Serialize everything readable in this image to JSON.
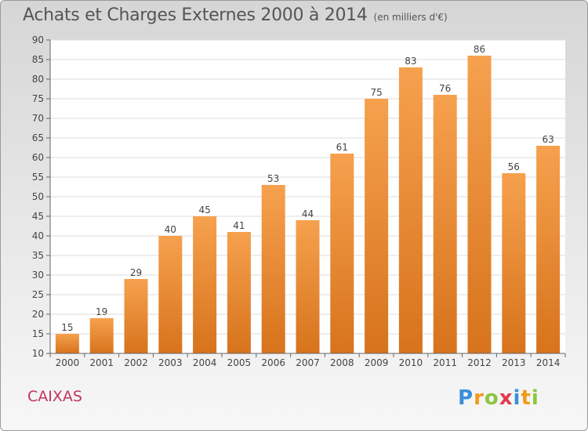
{
  "title": "Achats et Charges Externes 2000 à 2014",
  "subtitle": "(en milliers d'€)",
  "location": "CAIXAS",
  "logo": {
    "text": "Proxiti"
  },
  "colors": {
    "bar_light": "#f6a14e",
    "bar_dark": "#d7731c",
    "text": "#555555",
    "location": "#c0365a"
  },
  "chart_data": {
    "type": "bar",
    "title": "Achats et Charges Externes 2000 à 2014",
    "subtitle": "(en milliers d'€)",
    "categories": [
      "2000",
      "2001",
      "2002",
      "2003",
      "2004",
      "2005",
      "2006",
      "2007",
      "2008",
      "2009",
      "2010",
      "2011",
      "2012",
      "2013",
      "2014"
    ],
    "values": [
      15,
      19,
      29,
      40,
      45,
      41,
      53,
      44,
      61,
      75,
      83,
      76,
      86,
      56,
      63
    ],
    "xlabel": "",
    "ylabel": "",
    "ylim": [
      10,
      90
    ],
    "yticks": [
      10,
      15,
      20,
      25,
      30,
      35,
      40,
      45,
      50,
      55,
      60,
      65,
      70,
      75,
      80,
      85,
      90
    ],
    "grid": true,
    "data_labels": true
  }
}
